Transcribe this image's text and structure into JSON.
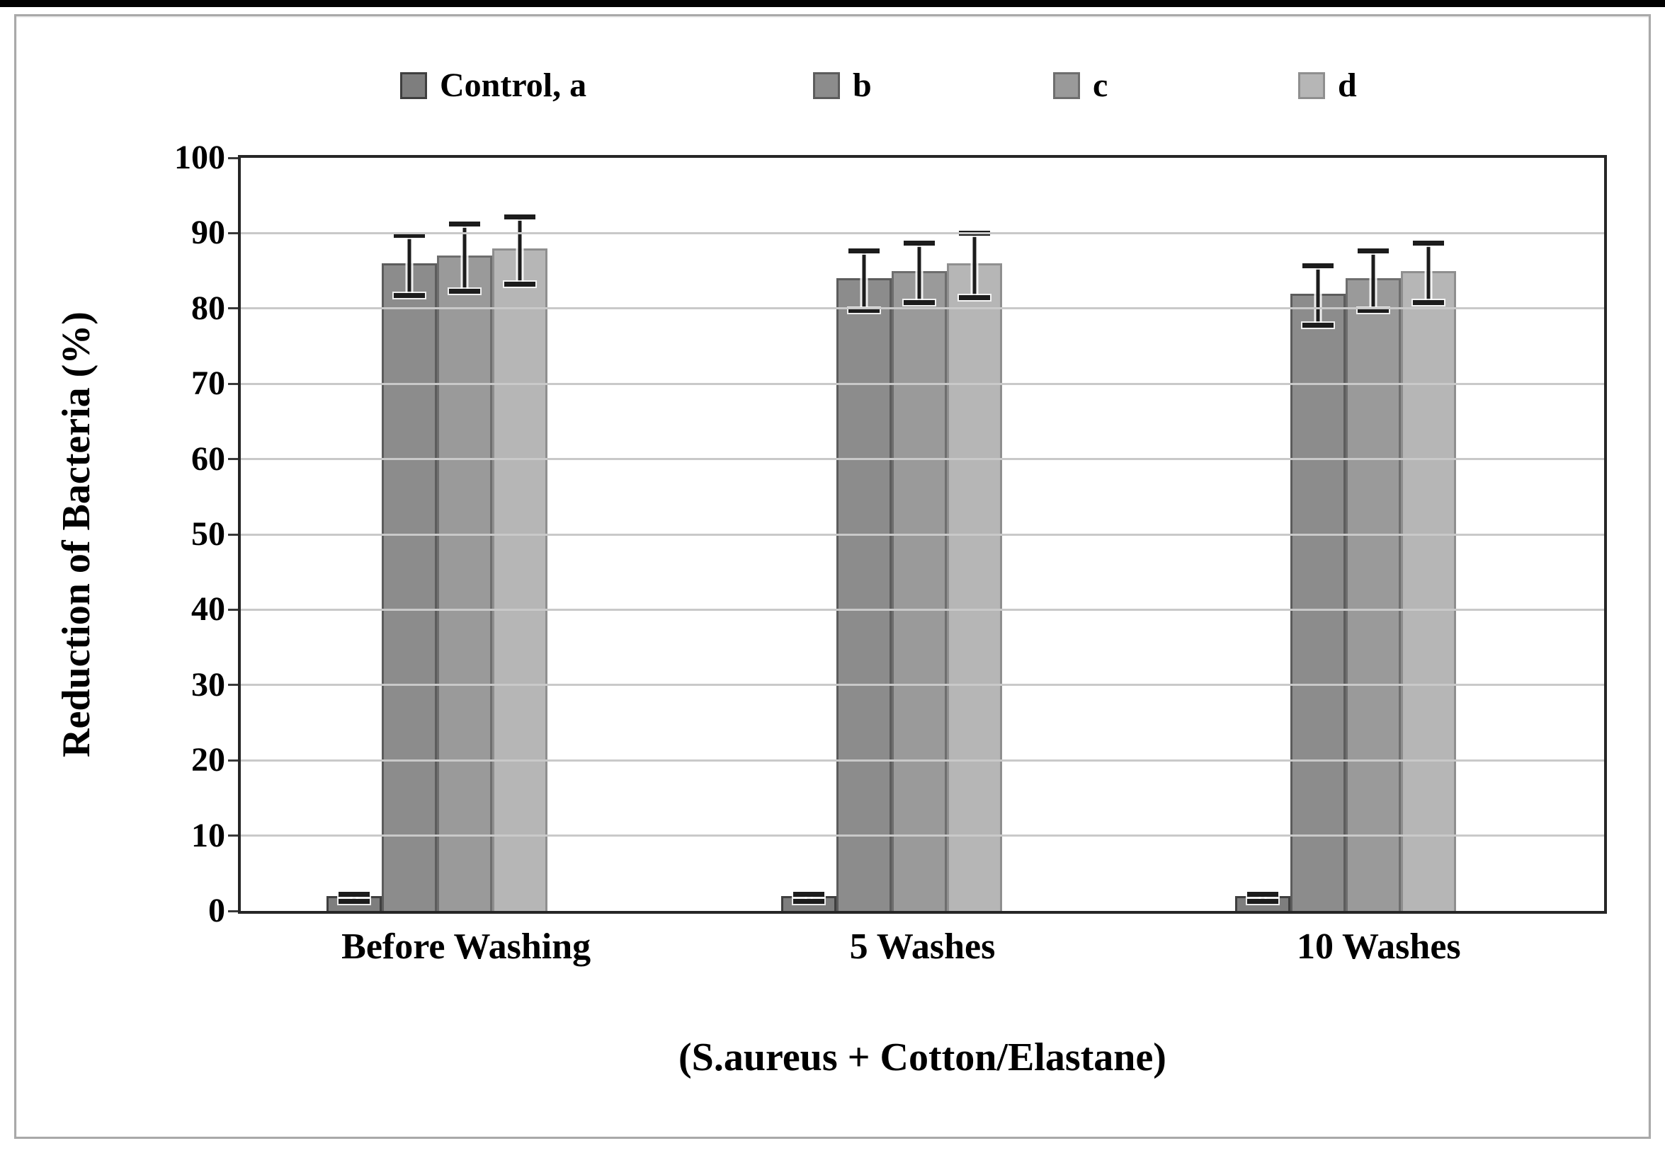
{
  "figure_title": "",
  "chart_data": {
    "type": "bar",
    "title": "",
    "categories": [
      "Before Washing",
      "5 Washes",
      "10 Washes"
    ],
    "series": [
      {
        "name": "Control, a",
        "values": [
          2,
          2,
          2
        ],
        "error_bars": [
          0.5,
          0.5,
          0.5
        ],
        "fill": "#7e7e7e",
        "edge": "#3f3f3f"
      },
      {
        "name": "b",
        "values": [
          86,
          84,
          82
        ],
        "error_bars": [
          4,
          4,
          4
        ],
        "fill": "#8c8c8c",
        "edge": "#5c5c5c"
      },
      {
        "name": "c",
        "values": [
          87,
          85,
          84
        ],
        "error_bars": [
          4.5,
          4,
          4
        ],
        "fill": "#9a9a9a",
        "edge": "#6e6e6e"
      },
      {
        "name": "d",
        "values": [
          88,
          86,
          85
        ],
        "error_bars": [
          4.5,
          4.3,
          4
        ],
        "fill": "#b6b6b6",
        "edge": "#8f8f8f"
      }
    ],
    "xlabel": "(S.aureus + Cotton/Elastane)",
    "ylabel": "Reduction of Bacteria (%)",
    "ylim": [
      0,
      100
    ],
    "yticks": [
      0,
      10,
      20,
      30,
      40,
      50,
      60,
      70,
      80,
      90,
      100
    ],
    "grid": "horizontal",
    "gridline_color": "#c9c9c9",
    "legend_position": "top",
    "error_bar_color": "#1c1c1c",
    "plot_border_color": "#262626"
  }
}
